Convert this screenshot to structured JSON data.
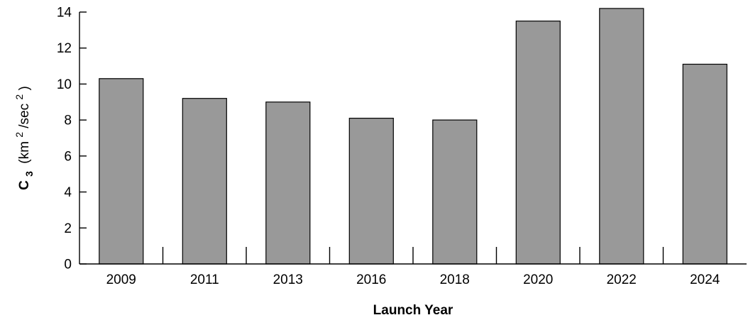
{
  "chart_data": {
    "type": "bar",
    "title": "",
    "xlabel": "Launch Year",
    "ylabel": {
      "symbol": "C",
      "subscript": "3",
      "unit_open": "(km",
      "unit_sup1": "2",
      "unit_mid": "/sec",
      "unit_sup2": "2",
      "unit_close": ")"
    },
    "categories": [
      "2009",
      "2011",
      "2013",
      "2016",
      "2018",
      "2020",
      "2022",
      "2024"
    ],
    "values": [
      10.3,
      9.2,
      9.0,
      8.1,
      8.0,
      13.5,
      14.2,
      11.1
    ],
    "ylim": [
      0,
      14
    ],
    "yticks": [
      "0",
      "2",
      "4",
      "6",
      "8",
      "10",
      "12",
      "14"
    ],
    "bar_color": "#999999",
    "bar_edge_color": "#000000",
    "grid": false,
    "legend": "none"
  }
}
